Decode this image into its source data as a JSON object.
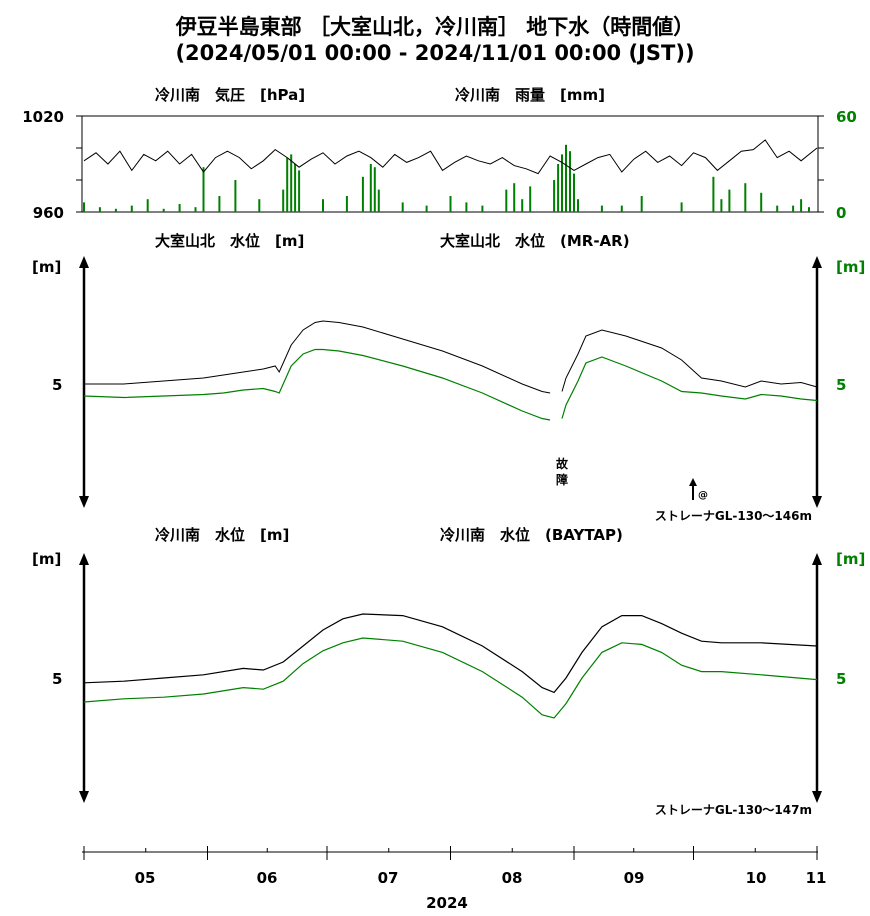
{
  "title_line1": "伊豆半島東部 ［大室山北，冷川南］ 地下水（時間値）",
  "title_line2": "(2024/05/01 00:00 - 2024/11/01 00:00 (JST))",
  "panel1": {
    "left_label": "冷川南　気圧　[hPa]",
    "right_label": "冷川南　雨量　[mm]",
    "left_ticks": [
      "1020",
      "960"
    ],
    "right_ticks": [
      "60",
      "0"
    ]
  },
  "panel2": {
    "left_label": "大室山北　水位　[m]",
    "right_label": "大室山北　水位　(MR-AR)",
    "unit_left": "[m]",
    "unit_right": "[m]",
    "tick_left": "5",
    "tick_right": "5",
    "fault_label": "故障",
    "at_mark": "@",
    "strainer": "ストレーナGL-130〜146m"
  },
  "panel3": {
    "left_label": "冷川南　水位　[m]",
    "right_label": "冷川南　水位　(BAYTAP)",
    "unit_left": "[m]",
    "unit_right": "[m]",
    "tick_left": "5",
    "tick_right": "5",
    "strainer": "ストレーナGL-130〜147m"
  },
  "x_axis": {
    "months": [
      "05",
      "06",
      "07",
      "08",
      "09",
      "10",
      "11"
    ],
    "year": "2024"
  },
  "colors": {
    "black": "#000000",
    "green": "#008000"
  },
  "chart_data": [
    {
      "type": "line",
      "title": "冷川南 気圧 / 雨量",
      "x_unit": "day of period (2024-05-01 = 0)",
      "series": [
        {
          "name": "冷川南 気圧",
          "axis": "left",
          "ylim": [
            960,
            1020
          ],
          "x": [
            0,
            3,
            6,
            9,
            12,
            15,
            18,
            21,
            24,
            27,
            30,
            33,
            36,
            39,
            42,
            45,
            48,
            51,
            54,
            57,
            60,
            63,
            66,
            69,
            72,
            75,
            78,
            81,
            84,
            87,
            90,
            93,
            96,
            99,
            102,
            105,
            108,
            111,
            114,
            117,
            120,
            123,
            126,
            129,
            132,
            135,
            138,
            141,
            144,
            147,
            150,
            153,
            156,
            159,
            162,
            165,
            168,
            171,
            174,
            177,
            180,
            184
          ],
          "values": [
            992,
            997,
            990,
            998,
            986,
            996,
            992,
            998,
            990,
            996,
            985,
            994,
            998,
            994,
            987,
            992,
            999,
            994,
            988,
            993,
            997,
            990,
            995,
            998,
            994,
            988,
            996,
            991,
            994,
            998,
            986,
            991,
            995,
            992,
            990,
            994,
            989,
            987,
            984,
            995,
            991,
            986,
            990,
            994,
            996,
            985,
            993,
            998,
            991,
            995,
            989,
            997,
            994,
            986,
            992,
            998,
            999,
            1005,
            994,
            998,
            992,
            1000
          ]
        },
        {
          "name": "冷川南 雨量",
          "axis": "right",
          "ylim": [
            0,
            60
          ],
          "x": [
            0,
            4,
            8,
            12,
            16,
            20,
            24,
            28,
            30,
            34,
            38,
            44,
            50,
            51,
            52,
            53,
            54,
            60,
            66,
            70,
            72,
            73,
            74,
            80,
            86,
            92,
            96,
            100,
            106,
            108,
            110,
            112,
            118,
            119,
            120,
            121,
            122,
            123,
            124,
            130,
            135,
            140,
            150,
            158,
            160,
            162,
            166,
            170,
            174,
            178,
            180,
            182
          ],
          "values": [
            6,
            3,
            2,
            4,
            8,
            2,
            5,
            3,
            28,
            10,
            20,
            8,
            14,
            34,
            36,
            30,
            26,
            8,
            10,
            22,
            30,
            28,
            14,
            6,
            4,
            10,
            6,
            4,
            14,
            18,
            8,
            16,
            20,
            30,
            36,
            42,
            38,
            24,
            8,
            4,
            4,
            10,
            6,
            22,
            8,
            14,
            18,
            12,
            4,
            4,
            8,
            3
          ]
        }
      ]
    },
    {
      "type": "line",
      "title": "大室山北 水位",
      "x_unit": "day of period (2024-05-01 = 0)",
      "series": [
        {
          "name": "大室山北 水位",
          "axis": "left",
          "x": [
            0,
            10,
            20,
            30,
            35,
            40,
            45,
            48,
            49,
            50,
            52,
            55,
            58,
            60,
            64,
            70,
            80,
            90,
            100,
            110,
            115,
            117,
            null,
            120,
            121,
            124,
            126,
            130,
            136,
            145,
            150,
            155,
            160,
            166,
            170,
            175,
            180,
            184
          ],
          "values": [
            5.0,
            5.0,
            5.1,
            5.2,
            5.3,
            5.4,
            5.5,
            5.6,
            5.4,
            5.7,
            6.3,
            6.8,
            7.05,
            7.1,
            7.05,
            6.9,
            6.5,
            6.1,
            5.6,
            5.0,
            4.75,
            4.7,
            null,
            4.75,
            5.2,
            6.0,
            6.6,
            6.8,
            6.6,
            6.2,
            5.8,
            5.2,
            5.1,
            4.9,
            5.1,
            5.0,
            5.05,
            4.9
          ]
        },
        {
          "name": "大室山北 水位 (MR-AR)",
          "axis": "right",
          "x": [
            0,
            10,
            20,
            30,
            35,
            40,
            45,
            48,
            49,
            50,
            52,
            55,
            58,
            60,
            64,
            70,
            80,
            90,
            100,
            110,
            115,
            117,
            null,
            120,
            121,
            124,
            126,
            130,
            136,
            145,
            150,
            155,
            160,
            166,
            170,
            175,
            180,
            184
          ],
          "values": [
            4.6,
            4.55,
            4.6,
            4.65,
            4.7,
            4.8,
            4.85,
            4.75,
            4.7,
            5.0,
            5.6,
            6.0,
            6.15,
            6.15,
            6.1,
            5.95,
            5.6,
            5.2,
            4.7,
            4.1,
            3.85,
            3.8,
            null,
            3.85,
            4.3,
            5.1,
            5.7,
            5.9,
            5.6,
            5.1,
            4.75,
            4.7,
            4.6,
            4.5,
            4.65,
            4.6,
            4.5,
            4.45
          ]
        }
      ]
    },
    {
      "type": "line",
      "title": "冷川南 水位",
      "x_unit": "day of period (2024-05-01 = 0)",
      "series": [
        {
          "name": "冷川南 水位",
          "axis": "left",
          "x": [
            0,
            10,
            20,
            30,
            40,
            45,
            50,
            55,
            60,
            65,
            70,
            80,
            90,
            100,
            110,
            115,
            118,
            121,
            125,
            130,
            135,
            140,
            145,
            150,
            155,
            160,
            170,
            184
          ],
          "values": [
            4.85,
            4.9,
            5.0,
            5.1,
            5.3,
            5.25,
            5.5,
            6.0,
            6.5,
            6.85,
            7.0,
            6.95,
            6.6,
            6.0,
            5.2,
            4.7,
            4.55,
            5.0,
            5.8,
            6.6,
            6.95,
            6.95,
            6.7,
            6.4,
            6.15,
            6.1,
            6.1,
            6.0
          ]
        },
        {
          "name": "冷川南 水位 (BAYTAP)",
          "axis": "right",
          "x": [
            0,
            10,
            20,
            30,
            40,
            45,
            50,
            55,
            60,
            65,
            70,
            80,
            90,
            100,
            110,
            115,
            118,
            121,
            125,
            130,
            135,
            140,
            145,
            150,
            155,
            160,
            170,
            184
          ],
          "values": [
            4.25,
            4.35,
            4.4,
            4.5,
            4.7,
            4.65,
            4.9,
            5.45,
            5.85,
            6.1,
            6.25,
            6.15,
            5.8,
            5.2,
            4.4,
            3.85,
            3.75,
            4.2,
            5.0,
            5.8,
            6.1,
            6.05,
            5.8,
            5.4,
            5.2,
            5.2,
            5.1,
            4.95
          ]
        }
      ]
    }
  ]
}
